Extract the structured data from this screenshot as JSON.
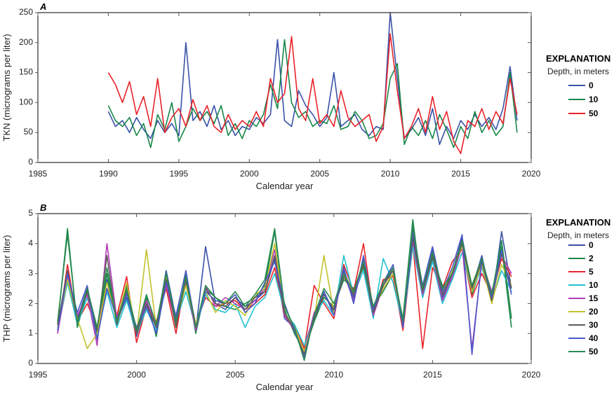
{
  "chart_data": [
    {
      "type": "line",
      "panel_label": "A",
      "xlabel": "Calendar year",
      "ylabel": "TKN (micrograms per liter)",
      "xlim": [
        1985,
        2020
      ],
      "ylim": [
        0,
        250
      ],
      "xticks": [
        1985,
        1990,
        1995,
        2000,
        2005,
        2010,
        2015,
        2020
      ],
      "yticks": [
        0,
        50,
        100,
        150,
        200,
        250
      ],
      "legend": {
        "title": "EXPLANATION",
        "subtitle": "Depth, in meters",
        "placement": "right"
      },
      "x_start": 1990,
      "x_step": 0.5,
      "series": [
        {
          "name": "0",
          "color": "#3a52a8",
          "values": [
            85,
            60,
            70,
            50,
            75,
            55,
            40,
            70,
            50,
            65,
            45,
            200,
            70,
            85,
            60,
            95,
            55,
            70,
            45,
            60,
            55,
            75,
            65,
            80,
            205,
            70,
            60,
            120,
            95,
            80,
            60,
            75,
            150,
            60,
            70,
            80,
            55,
            45,
            60,
            55,
            250,
            140,
            40,
            55,
            75,
            45,
            90,
            30,
            60,
            40,
            70,
            55,
            80,
            60,
            75,
            55,
            90,
            160,
            70
          ]
        },
        {
          "name": "10",
          "color": "#19874a",
          "values": [
            95,
            70,
            60,
            75,
            45,
            65,
            25,
            80,
            55,
            100,
            35,
            60,
            90,
            70,
            85,
            65,
            95,
            45,
            65,
            40,
            70,
            60,
            80,
            130,
            90,
            205,
            100,
            75,
            85,
            60,
            70,
            65,
            95,
            55,
            60,
            85,
            70,
            40,
            45,
            65,
            140,
            165,
            30,
            60,
            45,
            70,
            40,
            80,
            55,
            25,
            60,
            40,
            85,
            50,
            70,
            45,
            60,
            150,
            50
          ]
        },
        {
          "name": "50",
          "color": "#e8232a",
          "values": [
            150,
            130,
            100,
            135,
            80,
            110,
            60,
            140,
            50,
            75,
            90,
            60,
            105,
            70,
            95,
            60,
            50,
            80,
            55,
            70,
            60,
            85,
            60,
            140,
            100,
            115,
            210,
            90,
            70,
            140,
            65,
            80,
            60,
            120,
            75,
            60,
            70,
            80,
            35,
            60,
            215,
            120,
            40,
            60,
            90,
            50,
            110,
            55,
            85,
            35,
            15,
            70,
            60,
            90,
            55,
            85,
            65,
            140,
            80
          ]
        }
      ]
    },
    {
      "type": "line",
      "panel_label": "B",
      "xlabel": "Calendar year",
      "ylabel": "THP (micrograms per liter)",
      "xlim": [
        1995,
        2020
      ],
      "ylim": [
        0,
        5
      ],
      "xticks": [
        1995,
        2000,
        2005,
        2010,
        2015,
        2020
      ],
      "yticks": [
        0,
        1,
        2,
        3,
        4,
        5
      ],
      "legend": {
        "title": "EXPLANATION",
        "subtitle": "Depth, in meters",
        "placement": "right"
      },
      "x_start": 1996,
      "x_step": 0.5,
      "series": [
        {
          "name": "0",
          "color": "#3a52a8",
          "values": [
            1.2,
            3.0,
            1.5,
            2.5,
            1.1,
            2.8,
            1.4,
            2.2,
            0.9,
            2.0,
            1.2,
            3.1,
            1.5,
            2.8,
            1.1,
            3.9,
            2.0,
            1.8,
            2.2,
            1.9,
            2.1,
            2.4,
            3.5,
            1.5,
            1.2,
            0.3,
            1.5,
            2.4,
            1.7,
            3.1,
            2.2,
            3.5,
            1.6,
            2.6,
            3.2,
            1.2,
            4.5,
            2.5,
            3.8,
            2.2,
            3.0,
            4.2,
            2.5,
            3.6,
            2.0,
            4.4,
            2.5
          ]
        },
        {
          "name": "2",
          "color": "#19874a",
          "values": [
            1.3,
            4.5,
            1.2,
            2.4,
            1.0,
            3.0,
            1.3,
            2.6,
            1.1,
            2.2,
            0.9,
            2.8,
            1.2,
            3.0,
            1.0,
            2.5,
            2.2,
            1.9,
            1.8,
            2.0,
            2.2,
            2.6,
            4.4,
            1.8,
            1.0,
            0.4,
            1.4,
            2.2,
            1.9,
            2.8,
            2.5,
            3.2,
            1.9,
            2.4,
            3.0,
            1.5,
            4.8,
            2.2,
            3.5,
            2.6,
            2.8,
            4.0,
            2.3,
            3.3,
            2.2,
            3.9,
            1.2
          ]
        },
        {
          "name": "5",
          "color": "#e8232a",
          "values": [
            1.0,
            3.3,
            1.4,
            2.0,
            1.2,
            2.5,
            1.6,
            2.9,
            0.7,
            1.9,
            1.4,
            2.5,
            1.0,
            2.9,
            1.3,
            2.2,
            1.9,
            2.0,
            2.1,
            1.8,
            2.0,
            2.3,
            3.2,
            1.6,
            1.3,
            0.5,
            2.6,
            2.0,
            1.5,
            3.3,
            2.4,
            4.0,
            1.7,
            2.8,
            2.9,
            1.1,
            4.0,
            0.5,
            3.2,
            2.5,
            3.4,
            3.8,
            2.2,
            3.0,
            2.3,
            3.5,
            2.9
          ]
        },
        {
          "name": "10",
          "color": "#21c1d1",
          "values": [
            1.1,
            2.7,
            1.3,
            2.2,
            0.9,
            2.4,
            1.2,
            2.1,
            1.0,
            1.8,
            1.1,
            2.6,
            1.4,
            2.4,
            1.2,
            2.3,
            1.8,
            1.7,
            2.0,
            1.2,
            1.9,
            2.2,
            3.0,
            1.7,
            1.3,
            0.6,
            1.6,
            2.1,
            1.6,
            3.6,
            2.3,
            3.1,
            1.5,
            3.5,
            2.7,
            1.3,
            3.9,
            2.2,
            3.4,
            2.0,
            2.8,
            3.7,
            2.4,
            3.2,
            2.1,
            3.1,
            2.4
          ]
        },
        {
          "name": "15",
          "color": "#b43cb4",
          "values": [
            1.0,
            2.9,
            1.6,
            2.3,
            0.6,
            4.0,
            1.5,
            2.5,
            1.0,
            2.1,
            1.3,
            2.6,
            1.3,
            2.7,
            1.1,
            2.6,
            1.9,
            2.2,
            2.0,
            1.8,
            2.1,
            2.5,
            3.8,
            1.6,
            1.1,
            0.4,
            1.7,
            2.3,
            1.8,
            3.0,
            2.1,
            3.4,
            1.6,
            2.6,
            3.1,
            1.4,
            4.1,
            2.3,
            3.6,
            2.1,
            2.9,
            3.9,
            0.5,
            3.4,
            2.4,
            3.6,
            3.0
          ]
        },
        {
          "name": "20",
          "color": "#c3c22c",
          "values": [
            1.2,
            2.8,
            1.5,
            0.5,
            1.0,
            2.7,
            1.4,
            2.7,
            1.0,
            3.8,
            1.2,
            2.9,
            1.4,
            2.6,
            1.3,
            2.4,
            1.7,
            2.1,
            1.9,
            1.6,
            2.3,
            2.5,
            4.0,
            1.7,
            1.2,
            0.4,
            1.5,
            3.6,
            1.7,
            3.0,
            2.3,
            3.3,
            1.8,
            2.5,
            3.0,
            1.3,
            4.3,
            2.4,
            3.7,
            2.3,
            3.1,
            3.9,
            2.4,
            3.3,
            2.0,
            3.3,
            2.6
          ]
        },
        {
          "name": "30",
          "color": "#5a5a5a",
          "values": [
            1.3,
            3.1,
            1.4,
            2.4,
            1.1,
            3.6,
            1.3,
            2.4,
            1.0,
            2.0,
            1.2,
            2.8,
            1.3,
            2.8,
            1.2,
            2.5,
            2.0,
            1.9,
            2.2,
            1.8,
            2.2,
            2.4,
            3.6,
            1.7,
            1.1,
            0.3,
            1.5,
            2.3,
            1.8,
            2.9,
            2.3,
            3.3,
            1.7,
            2.6,
            3.1,
            1.3,
            4.2,
            2.4,
            3.6,
            2.3,
            3.0,
            4.0,
            2.5,
            3.4,
            2.1,
            3.7,
            2.5
          ]
        },
        {
          "name": "40",
          "color": "#4a58c8",
          "values": [
            1.1,
            3.0,
            1.7,
            2.6,
            0.8,
            2.5,
            1.5,
            2.3,
            1.2,
            1.9,
            1.0,
            2.7,
            1.6,
            3.1,
            1.2,
            2.4,
            2.1,
            2.0,
            2.3,
            1.7,
            2.0,
            2.7,
            3.4,
            2.0,
            1.1,
            0.2,
            1.6,
            2.4,
            1.6,
            3.2,
            2.0,
            3.6,
            1.8,
            2.7,
            3.3,
            1.2,
            4.4,
            2.6,
            3.9,
            2.4,
            3.2,
            4.3,
            0.3,
            3.5,
            2.2,
            3.8,
            2.3
          ]
        },
        {
          "name": "50",
          "color": "#2a8a50",
          "values": [
            1.4,
            4.3,
            1.3,
            2.5,
            1.2,
            3.2,
            1.4,
            2.5,
            1.1,
            2.3,
            1.3,
            3.0,
            1.4,
            2.9,
            1.2,
            2.6,
            2.2,
            2.0,
            2.4,
            1.9,
            2.3,
            2.8,
            4.5,
            1.9,
            1.2,
            0.1,
            1.6,
            2.5,
            2.0,
            3.0,
            2.4,
            3.4,
            1.9,
            2.7,
            3.2,
            1.4,
            4.6,
            2.5,
            3.7,
            2.5,
            3.0,
            4.1,
            2.6,
            3.5,
            2.3,
            4.1,
            1.5
          ]
        }
      ]
    }
  ]
}
